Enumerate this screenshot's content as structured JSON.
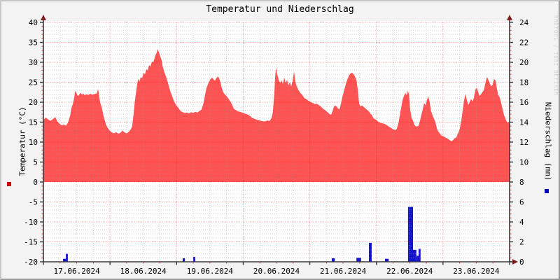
{
  "title": "Temperatur und Niederschlag",
  "watermark": "RRDTOOL / TOBI OETIKER",
  "colors": {
    "area": "#ff5252",
    "bars": "#1414cc",
    "grid_minor": "#9e9e9e",
    "grid_major": "#ff0000",
    "axis": "#3a3a3a",
    "arrow": "#7f1f1f",
    "background": "#f3f3f3",
    "canvas": "#ffffff",
    "watermark": "#cfcfcf",
    "legend_red": "#d00000",
    "legend_blue": "#0000c8",
    "text": "#000000"
  },
  "chart_data": {
    "type": "area",
    "title": "Temperatur und Niederschlag",
    "x_axis": {
      "start": "17.06.2024 00:00",
      "span_hours": 168,
      "labels": [
        "17.06.2024",
        "18.06.2024",
        "19.06.2024",
        "20.06.2024",
        "21.06.2024",
        "22.06.2024",
        "23.06.2024"
      ],
      "minor_grid_hours": 6,
      "major_grid_hours": 24
    },
    "left_axis": {
      "label": "Temperatur (°C)",
      "min": -20,
      "max": 40,
      "minor_step": 1,
      "major_step": 5,
      "ticks": [
        40,
        35,
        30,
        25,
        20,
        15,
        10,
        5,
        0,
        -5,
        -10,
        -15,
        -20
      ]
    },
    "right_axis": {
      "label": "Niederschlag (mm)",
      "min": 0,
      "max": 24,
      "major_step": 2,
      "ticks": [
        24,
        22,
        20,
        18,
        16,
        14,
        12,
        10,
        8,
        6,
        4,
        2,
        0
      ]
    },
    "series": [
      {
        "name": "Temperatur",
        "type": "area",
        "unit": "°C",
        "axis": "left",
        "baseline": 0,
        "points": [
          [
            0,
            15.5
          ],
          [
            0.8,
            16.2
          ],
          [
            1.5,
            15.8
          ],
          [
            2.5,
            15.3
          ],
          [
            3.5,
            15.8
          ],
          [
            4.3,
            16.3
          ],
          [
            5,
            15.2
          ],
          [
            5.8,
            14.6
          ],
          [
            6.6,
            14.2
          ],
          [
            7.3,
            14.4
          ],
          [
            8.1,
            14.1
          ],
          [
            8.8,
            14.8
          ],
          [
            9.6,
            16.5
          ],
          [
            10.1,
            18.5
          ],
          [
            10.6,
            19.5
          ],
          [
            11.1,
            21
          ],
          [
            11.4,
            22.8
          ],
          [
            11.9,
            22.3
          ],
          [
            12.4,
            21.5
          ],
          [
            12.9,
            21.8
          ],
          [
            13.4,
            22.4
          ],
          [
            13.9,
            21.9
          ],
          [
            14.4,
            22.2
          ],
          [
            14.9,
            21.7
          ],
          [
            15.4,
            22
          ],
          [
            16.1,
            21.8
          ],
          [
            16.9,
            22.1
          ],
          [
            17.7,
            21.9
          ],
          [
            18.4,
            22
          ],
          [
            19.2,
            22.2
          ],
          [
            19.7,
            23.3
          ],
          [
            19.9,
            22.5
          ],
          [
            20.4,
            20
          ],
          [
            20.9,
            19
          ],
          [
            21.7,
            16.5
          ],
          [
            22.5,
            14.5
          ],
          [
            23.2,
            13.5
          ],
          [
            24,
            12.8
          ],
          [
            24.7,
            12.4
          ],
          [
            25.5,
            12.2
          ],
          [
            26.2,
            12.5
          ],
          [
            27,
            12.1
          ],
          [
            27.7,
            12.3
          ],
          [
            28.5,
            12.9
          ],
          [
            29.3,
            12.4
          ],
          [
            30,
            12.2
          ],
          [
            30.8,
            12.6
          ],
          [
            31.5,
            13.2
          ],
          [
            32,
            14
          ],
          [
            32.5,
            17
          ],
          [
            33,
            20.5
          ],
          [
            33.6,
            23.5
          ],
          [
            34.1,
            25.8
          ],
          [
            34.6,
            25.2
          ],
          [
            35.1,
            26.3
          ],
          [
            35.6,
            26
          ],
          [
            36.1,
            27.4
          ],
          [
            36.6,
            27
          ],
          [
            37.1,
            28.3
          ],
          [
            37.6,
            28
          ],
          [
            38.1,
            29.3
          ],
          [
            38.6,
            29
          ],
          [
            39.1,
            30.2
          ],
          [
            39.6,
            30
          ],
          [
            40.1,
            31.2
          ],
          [
            40.4,
            31.8
          ],
          [
            40.9,
            32.5
          ],
          [
            41.1,
            33.3
          ],
          [
            41.6,
            32.6
          ],
          [
            42.1,
            31.5
          ],
          [
            42.6,
            30.5
          ],
          [
            42.9,
            29.2
          ],
          [
            43.6,
            27.5
          ],
          [
            44.4,
            26
          ],
          [
            45.2,
            24
          ],
          [
            45.7,
            22.8
          ],
          [
            46.4,
            21.5
          ],
          [
            47.2,
            20
          ],
          [
            47.9,
            19.2
          ],
          [
            48.7,
            18.5
          ],
          [
            49.4,
            17.8
          ],
          [
            50.2,
            17.5
          ],
          [
            51,
            17.3
          ],
          [
            51.7,
            17.4
          ],
          [
            52.5,
            17.2
          ],
          [
            53.2,
            17.5
          ],
          [
            54,
            17.3
          ],
          [
            54.7,
            17.6
          ],
          [
            55.5,
            17.4
          ],
          [
            56.3,
            17.8
          ],
          [
            57,
            18.2
          ],
          [
            57.8,
            20
          ],
          [
            58.3,
            22
          ],
          [
            58.8,
            23.6
          ],
          [
            59.3,
            24.5
          ],
          [
            59.8,
            25.3
          ],
          [
            60.3,
            25.8
          ],
          [
            60.8,
            26.2
          ],
          [
            61.3,
            25.7
          ],
          [
            61.8,
            25.4
          ],
          [
            62.3,
            26
          ],
          [
            62.8,
            26.4
          ],
          [
            63.3,
            26.1
          ],
          [
            63.8,
            25
          ],
          [
            64.3,
            23.5
          ],
          [
            64.8,
            22.5
          ],
          [
            65.6,
            21.8
          ],
          [
            66.3,
            21.3
          ],
          [
            67.1,
            20.5
          ],
          [
            67.9,
            19.5
          ],
          [
            68.6,
            18.4
          ],
          [
            69.4,
            18
          ],
          [
            70.1,
            17.7
          ],
          [
            70.9,
            17.6
          ],
          [
            71.6,
            17.4
          ],
          [
            72.4,
            17.2
          ],
          [
            73.2,
            17
          ],
          [
            73.9,
            16.8
          ],
          [
            74.7,
            16.4
          ],
          [
            75.4,
            16
          ],
          [
            76.2,
            15.8
          ],
          [
            76.9,
            15.6
          ],
          [
            77.7,
            15.5
          ],
          [
            78.5,
            15.3
          ],
          [
            79.2,
            15.2
          ],
          [
            80,
            15.2
          ],
          [
            80.7,
            15.4
          ],
          [
            81.5,
            15.3
          ],
          [
            82.2,
            16
          ],
          [
            82.7,
            17.5
          ],
          [
            83.2,
            22
          ],
          [
            83.5,
            26
          ],
          [
            83.8,
            28.6
          ],
          [
            84.3,
            27
          ],
          [
            84.8,
            25.5
          ],
          [
            85.3,
            24.8
          ],
          [
            85.8,
            25.5
          ],
          [
            86.3,
            24.5
          ],
          [
            86.8,
            26.2
          ],
          [
            87.3,
            24.8
          ],
          [
            87.8,
            25.6
          ],
          [
            88.3,
            24.2
          ],
          [
            88.8,
            25
          ],
          [
            89.3,
            24
          ],
          [
            89.8,
            25.2
          ],
          [
            90.3,
            27.7
          ],
          [
            90.8,
            25
          ],
          [
            91.3,
            24
          ],
          [
            91.8,
            23.2
          ],
          [
            92.6,
            22.3
          ],
          [
            93.3,
            21.8
          ],
          [
            94.1,
            21
          ],
          [
            94.9,
            20.7
          ],
          [
            95.6,
            20.3
          ],
          [
            96.4,
            20
          ],
          [
            97.1,
            19.8
          ],
          [
            97.9,
            19.5
          ],
          [
            98.6,
            19.6
          ],
          [
            99.4,
            19.2
          ],
          [
            100.1,
            18.8
          ],
          [
            100.9,
            18.3
          ],
          [
            101.7,
            17.9
          ],
          [
            102.4,
            17.5
          ],
          [
            103.2,
            17
          ],
          [
            103.7,
            16.9
          ],
          [
            104.2,
            17.8
          ],
          [
            104.7,
            18.9
          ],
          [
            105.2,
            19.2
          ],
          [
            105.7,
            18.9
          ],
          [
            106.2,
            18.4
          ],
          [
            106.7,
            18.2
          ],
          [
            107.2,
            19.5
          ],
          [
            107.7,
            21.3
          ],
          [
            108.2,
            22.5
          ],
          [
            108.7,
            23.8
          ],
          [
            109.2,
            25
          ],
          [
            109.7,
            26
          ],
          [
            110.2,
            26.8
          ],
          [
            110.7,
            27.2
          ],
          [
            111.2,
            27.4
          ],
          [
            111.7,
            27.1
          ],
          [
            112.2,
            26.5
          ],
          [
            112.8,
            25.6
          ],
          [
            113.3,
            23
          ],
          [
            113.8,
            19.5
          ],
          [
            114.3,
            19
          ],
          [
            114.8,
            19.2
          ],
          [
            115.3,
            18.9
          ],
          [
            115.8,
            18.6
          ],
          [
            116.3,
            18.3
          ],
          [
            116.8,
            18
          ],
          [
            117.3,
            17.7
          ],
          [
            117.8,
            17.2
          ],
          [
            118.3,
            16.8
          ],
          [
            118.8,
            16.2
          ],
          [
            119.3,
            15.8
          ],
          [
            120.1,
            15.5
          ],
          [
            120.8,
            15
          ],
          [
            121.6,
            14.8
          ],
          [
            122.3,
            14.7
          ],
          [
            123.1,
            14.5
          ],
          [
            123.9,
            14.2
          ],
          [
            124.6,
            13.8
          ],
          [
            125.4,
            13.5
          ],
          [
            126.1,
            13.2
          ],
          [
            126.9,
            13
          ],
          [
            127.4,
            13.4
          ],
          [
            127.9,
            14.6
          ],
          [
            128.4,
            16.5
          ],
          [
            128.9,
            18.5
          ],
          [
            129.4,
            20.5
          ],
          [
            129.9,
            21.5
          ],
          [
            130.4,
            22.3
          ],
          [
            130.9,
            21.8
          ],
          [
            131.2,
            23
          ],
          [
            131.4,
            22
          ],
          [
            131.7,
            22.8
          ],
          [
            131.9,
            20.5
          ],
          [
            132.2,
            18
          ],
          [
            132.7,
            16
          ],
          [
            133.2,
            15.4
          ],
          [
            133.7,
            14.3
          ],
          [
            134.2,
            14
          ],
          [
            134.7,
            13.9
          ],
          [
            135.2,
            14.1
          ],
          [
            135.7,
            15.4
          ],
          [
            136.2,
            16.8
          ],
          [
            136.7,
            18.2
          ],
          [
            137.2,
            19.8
          ],
          [
            137.7,
            19.2
          ],
          [
            138.2,
            20.5
          ],
          [
            138.7,
            21.5
          ],
          [
            139.2,
            20
          ],
          [
            139.7,
            17.8
          ],
          [
            140.3,
            16.5
          ],
          [
            140.8,
            15.8
          ],
          [
            141.3,
            14.8
          ],
          [
            142,
            13
          ],
          [
            142.8,
            12.2
          ],
          [
            143.5,
            11.6
          ],
          [
            144.3,
            11.4
          ],
          [
            145,
            11.1
          ],
          [
            145.8,
            10.8
          ],
          [
            146.6,
            10.4
          ],
          [
            147.1,
            10.2
          ],
          [
            147.6,
            10.5
          ],
          [
            148.1,
            10.9
          ],
          [
            148.8,
            11.2
          ],
          [
            149.6,
            12.5
          ],
          [
            150.1,
            13.5
          ],
          [
            150.6,
            15.4
          ],
          [
            151.1,
            18
          ],
          [
            151.6,
            20.5
          ],
          [
            152.1,
            22.1
          ],
          [
            152.6,
            20.5
          ],
          [
            153.1,
            19.3
          ],
          [
            153.6,
            20
          ],
          [
            154.1,
            20.8
          ],
          [
            154.6,
            20.2
          ],
          [
            155.1,
            21
          ],
          [
            155.7,
            23.2
          ],
          [
            156.2,
            23.6
          ],
          [
            156.7,
            22.5
          ],
          [
            157.2,
            21.5
          ],
          [
            157.7,
            22
          ],
          [
            158.2,
            22.5
          ],
          [
            158.7,
            23
          ],
          [
            159.2,
            24.5
          ],
          [
            159.7,
            26
          ],
          [
            159.9,
            26.3
          ],
          [
            160.4,
            25.5
          ],
          [
            160.9,
            24.6
          ],
          [
            161.4,
            24
          ],
          [
            161.9,
            24.4
          ],
          [
            162.4,
            25.8
          ],
          [
            162.9,
            25.5
          ],
          [
            163.4,
            23.5
          ],
          [
            163.9,
            21.8
          ],
          [
            164.4,
            21.3
          ],
          [
            164.9,
            20
          ],
          [
            165.4,
            18.5
          ],
          [
            165.9,
            17
          ],
          [
            166.4,
            16
          ],
          [
            166.9,
            15.2
          ],
          [
            167.4,
            14.8
          ],
          [
            168,
            15.3
          ]
        ]
      },
      {
        "name": "Niederschlag",
        "type": "bar",
        "unit": "mm",
        "axis": "right",
        "bars": [
          [
            7.1,
            8.1,
            0.3
          ],
          [
            8.1,
            8.8,
            0.8
          ],
          [
            50.2,
            51,
            0.35
          ],
          [
            54,
            54.7,
            0.5
          ],
          [
            103.9,
            105,
            0.35
          ],
          [
            112.8,
            114.5,
            0.4
          ],
          [
            117.3,
            118.3,
            1.9
          ],
          [
            123.1,
            124.4,
            0.3
          ],
          [
            131.4,
            133.2,
            5.5
          ],
          [
            133.2,
            134.4,
            1.2
          ],
          [
            134.4,
            135.2,
            0.6
          ],
          [
            135.2,
            135.9,
            1.3
          ]
        ]
      }
    ]
  }
}
